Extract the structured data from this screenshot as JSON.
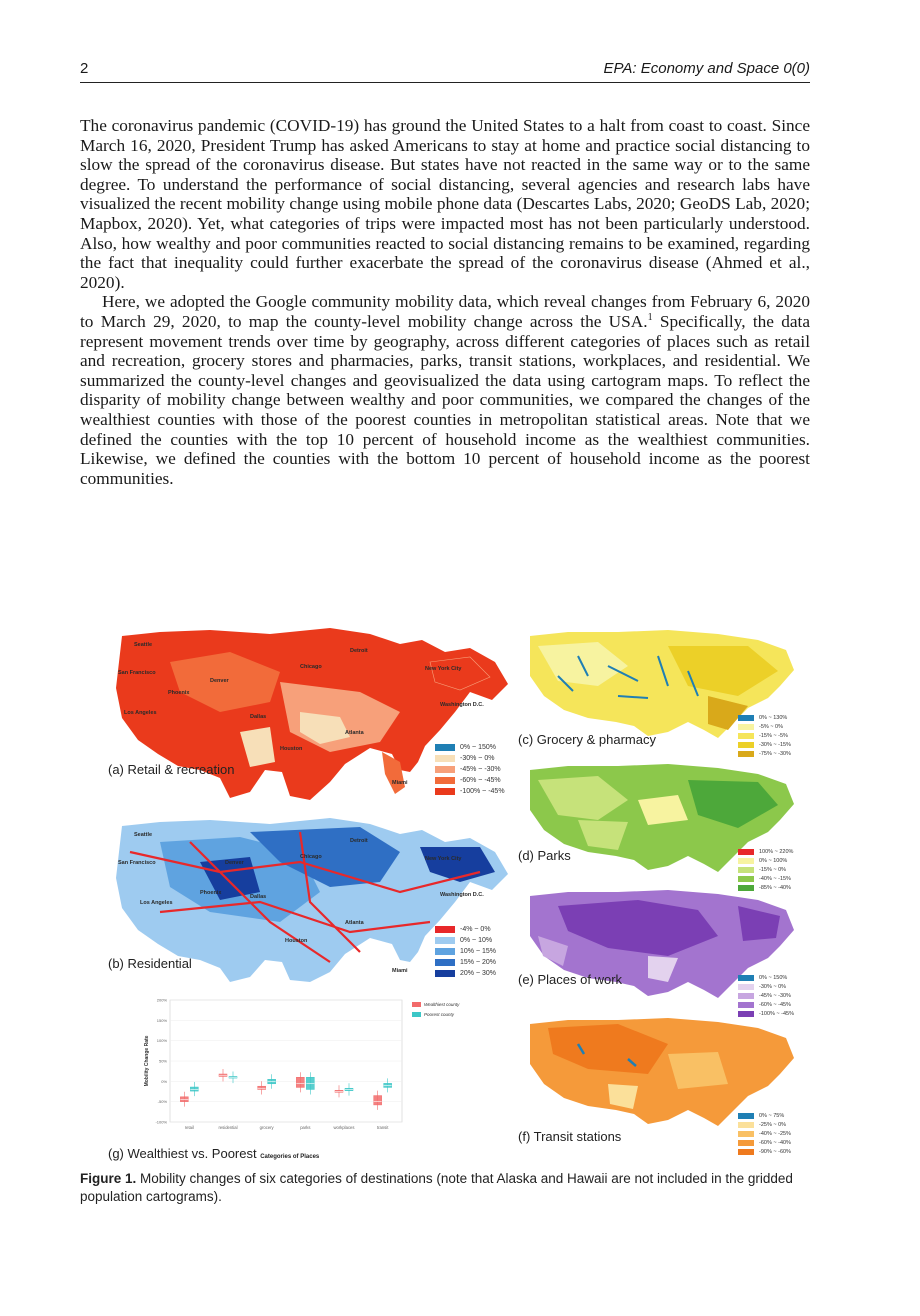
{
  "header": {
    "page_number": "2",
    "journal": "EPA: Economy and Space 0(0)"
  },
  "body": {
    "p1": "The coronavirus pandemic (COVID-19) has ground the United States to a halt from coast to coast. Since March 16, 2020, President Trump has asked Americans to stay at home and practice social distancing to slow the spread of the coronavirus disease. But states have not reacted in the same way or to the same degree. To understand the performance of social distancing, several agencies and research labs have visualized the recent mobility change using mobile phone data (Descartes Labs, 2020; GeoDS Lab, 2020; Mapbox, 2020). Yet, what categories of trips were impacted most has not been particularly understood. Also, how wealthy and poor communities reacted to social distancing remains to be examined, regarding the fact that inequality could further exacerbate the spread of the coronavirus disease (Ahmed et al., 2020).",
    "p2a": "Here, we adopted the Google community mobility data, which reveal changes from February 6, 2020 to March 29, 2020, to map the county-level mobility change across the USA.",
    "p2_sup": "1",
    "p2b": " Specifically, the data represent movement trends over time by geography, across different categories of places such as retail and recreation, grocery stores and pharmacies, parks, transit stations, workplaces, and residential. We summarized the county-level changes and geovisualized the data using cartogram maps. To reflect the disparity of mobility change between wealthy and poor communities, we compared the changes of the wealthiest counties with those of the poorest counties in metropolitan statistical areas. Note that we defined the counties with the top 10 percent of household income as the wealthiest communities. Likewise, we defined the counties with the bottom 10 percent of household income as the poorest communities."
  },
  "figure": {
    "panels": {
      "a": {
        "label": "(a) Retail & recreation",
        "legend": [
          "0% ~ 150%",
          "-30% ~ 0%",
          "-45% ~ -30%",
          "-60% ~ -45%",
          "-100% ~ -45%"
        ],
        "colors": [
          "#1f7fb4",
          "#f7dfb8",
          "#f7a07a",
          "#f26b3a",
          "#ea3a1c"
        ]
      },
      "b": {
        "label": "(b) Residential",
        "legend": [
          "-4% ~ 0%",
          "0% ~ 10%",
          "10% ~ 15%",
          "15% ~ 20%",
          "20% ~ 30%"
        ],
        "colors": [
          "#e8282a",
          "#9ecbf0",
          "#5fa3e0",
          "#2f6fc4",
          "#163e9e"
        ]
      },
      "c": {
        "label": "(c) Grocery & pharmacy",
        "legend": [
          "0% ~ 130%",
          "-5% ~ 0%",
          "-15% ~ -5%",
          "-30% ~ -15%",
          "-75% ~ -30%"
        ],
        "colors": [
          "#1f7fb4",
          "#f7f3a0",
          "#f5e55a",
          "#ecd028",
          "#d9a91a"
        ]
      },
      "d": {
        "label": "(d) Parks",
        "legend": [
          "100% ~ 220%",
          "0% ~ 100%",
          "-15% ~ 0%",
          "-40% ~ -15%",
          "-85% ~ -40%"
        ],
        "colors": [
          "#e8282a",
          "#f7f3a0",
          "#c6e27a",
          "#8cc84b",
          "#4da83a"
        ]
      },
      "e": {
        "label": "(e) Places of work",
        "legend": [
          "0% ~ 150%",
          "-30% ~ 0%",
          "-45% ~ -30%",
          "-60% ~ -45%",
          "-100% ~ -45%"
        ],
        "colors": [
          "#1f7fb4",
          "#e3d2ee",
          "#c7a6e0",
          "#a374cf",
          "#7b3fb4"
        ]
      },
      "f": {
        "label": "(f) Transit stations",
        "legend": [
          "0% ~ 75%",
          "-25% ~ 0%",
          "-40% ~ -25%",
          "-60% ~ -40%",
          "-90% ~ -60%"
        ],
        "colors": [
          "#1f7fb4",
          "#fbe09a",
          "#f9c064",
          "#f59a3a",
          "#ef7a1e"
        ]
      },
      "g": {
        "label": "(g) Wealthiest vs. Poorest",
        "xlabel": "Categories of Places",
        "ylabel": "Mobility Change Rate"
      }
    },
    "cities": [
      "Seattle",
      "San Francisco",
      "Los Angeles",
      "Phoenix",
      "Denver",
      "Dallas",
      "Houston",
      "Chicago",
      "Detroit",
      "Atlanta",
      "Miami",
      "New York City",
      "Washington D.C."
    ],
    "chart_data": {
      "type": "box",
      "categories": [
        "retail",
        "residential",
        "grocery",
        "parks",
        "workplaces",
        "transit"
      ],
      "yticks": [
        "200%",
        "150%",
        "100%",
        "50%",
        "0%",
        "-50%",
        "-100%"
      ],
      "ylim": [
        -100,
        200
      ],
      "legend": [
        "Wealthiest county",
        "Poorest county"
      ],
      "series": [
        {
          "name": "Wealthiest county",
          "color": "#f26b6b",
          "medians": [
            -45,
            15,
            -17,
            -5,
            -25,
            -50
          ],
          "q1": [
            -50,
            12,
            -20,
            -15,
            -27,
            -58
          ],
          "q3": [
            -38,
            18,
            -12,
            10,
            -22,
            -35
          ]
        },
        {
          "name": "Poorest county",
          "color": "#3cc7c7",
          "medians": [
            -20,
            10,
            0,
            -5,
            -20,
            -10
          ],
          "q1": [
            -24,
            8,
            -6,
            -20,
            -23,
            -15
          ],
          "q3": [
            -14,
            12,
            5,
            10,
            -17,
            -5
          ]
        }
      ]
    }
  },
  "caption": {
    "label": "Figure 1.",
    "text": " Mobility changes of six categories of destinations (note that Alaska and Hawaii are not included in the gridded population cartograms)."
  }
}
